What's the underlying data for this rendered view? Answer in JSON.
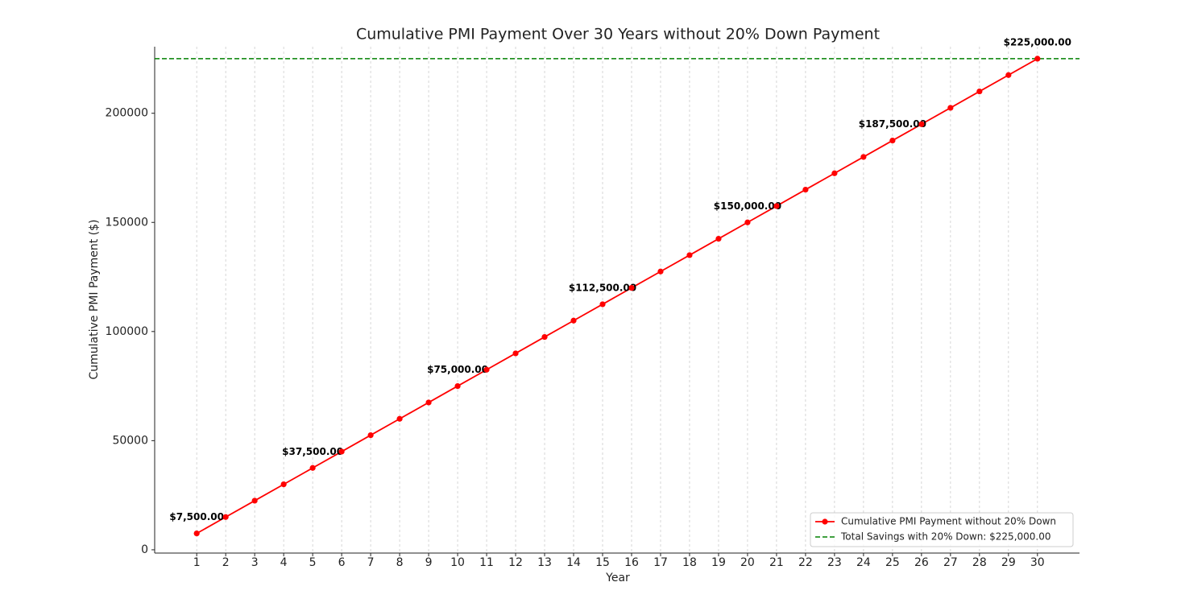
{
  "chart_data": {
    "type": "line",
    "title": "Cumulative PMI Payment Over 30 Years without 20% Down Payment",
    "x_label": "Year",
    "y_label": "Cumulative PMI Payment ($)",
    "x": [
      1,
      2,
      3,
      4,
      5,
      6,
      7,
      8,
      9,
      10,
      11,
      12,
      13,
      14,
      15,
      16,
      17,
      18,
      19,
      20,
      21,
      22,
      23,
      24,
      25,
      26,
      27,
      28,
      29,
      30
    ],
    "series": [
      {
        "name": "Cumulative PMI Payment without 20% Down",
        "color": "#ff0000",
        "values": [
          7500,
          15000,
          22500,
          30000,
          37500,
          45000,
          52500,
          60000,
          67500,
          75000,
          82500,
          90000,
          97500,
          105000,
          112500,
          120000,
          127500,
          135000,
          142500,
          150000,
          157500,
          165000,
          172500,
          180000,
          187500,
          195000,
          202500,
          210000,
          217500,
          225000
        ],
        "value_labels": [
          "$7,500.00",
          null,
          null,
          null,
          "$37,500.00",
          null,
          null,
          null,
          null,
          "$75,000.00",
          null,
          null,
          null,
          null,
          "$112,500.00",
          null,
          null,
          null,
          null,
          "$150,000.00",
          null,
          null,
          null,
          null,
          "$187,500.00",
          null,
          null,
          null,
          null,
          "$225,000.00"
        ]
      }
    ],
    "reference_line": {
      "name": "Total Savings with 20% Down: $225,000.00",
      "value": 225000,
      "color": "#008000",
      "style": "dashed"
    },
    "xlim": [
      -0.45,
      31.45
    ],
    "ylim": [
      -1500,
      230500
    ],
    "xticks": [
      1,
      2,
      3,
      4,
      5,
      6,
      7,
      8,
      9,
      10,
      11,
      12,
      13,
      14,
      15,
      16,
      17,
      18,
      19,
      20,
      21,
      22,
      23,
      24,
      25,
      26,
      27,
      28,
      29,
      30
    ],
    "yticks": [
      0,
      50000,
      100000,
      150000,
      200000
    ],
    "grid": "x",
    "legend": "lower right"
  }
}
